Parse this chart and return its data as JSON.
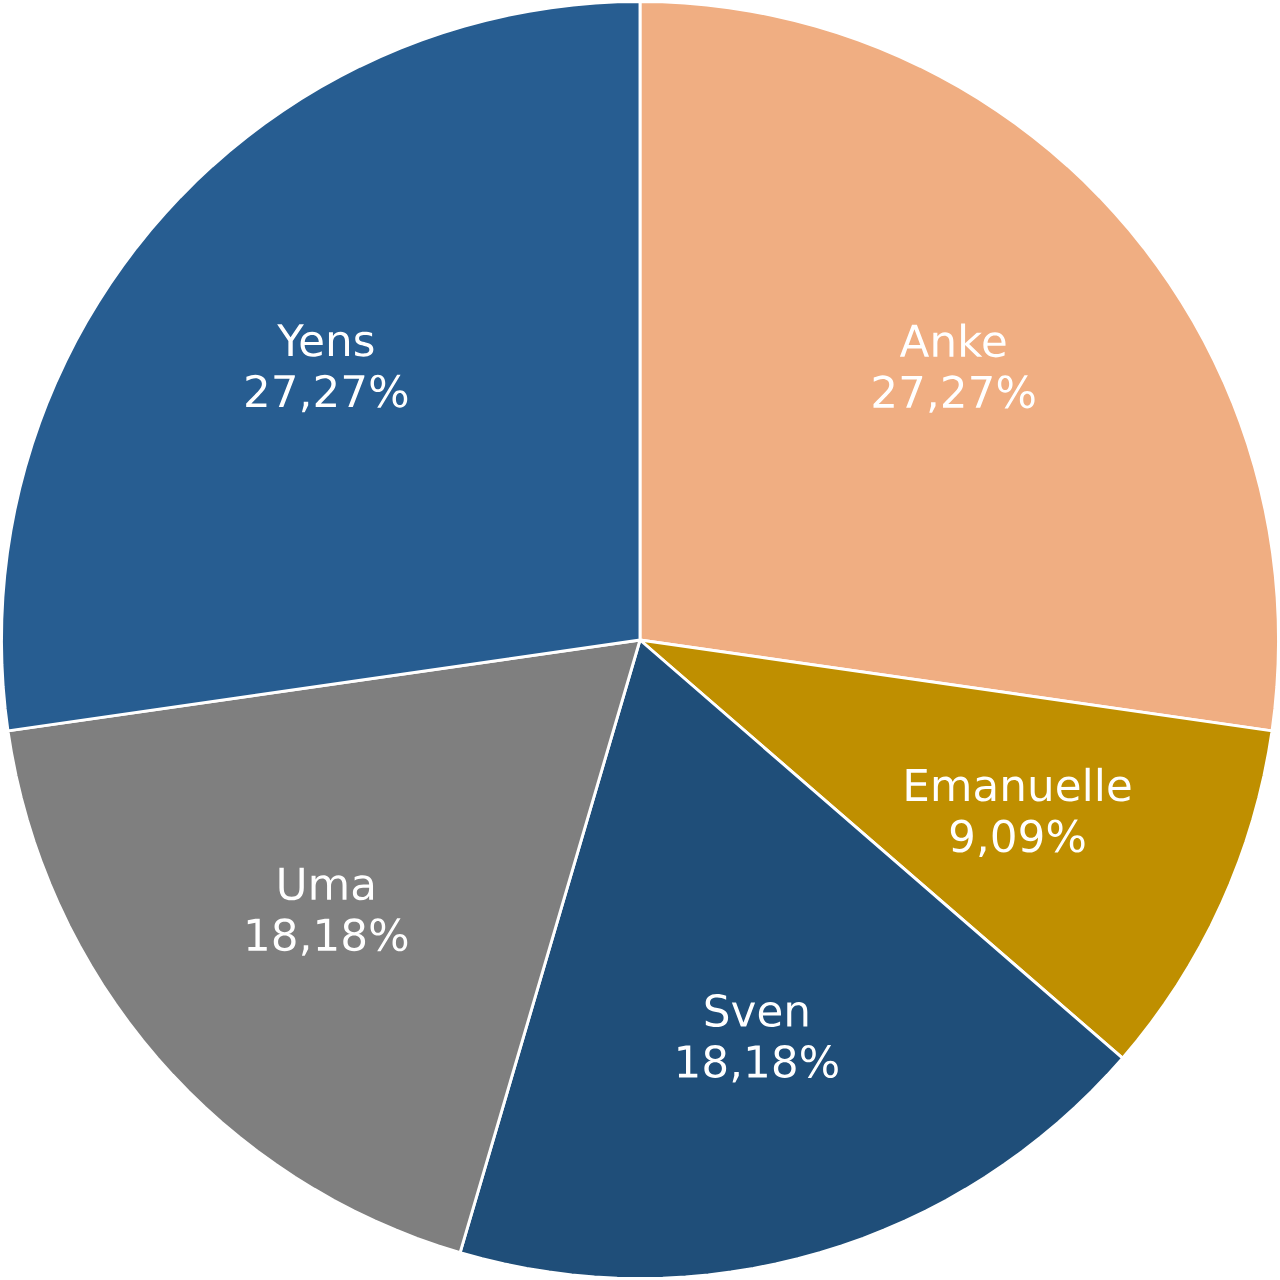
{
  "chart_data": {
    "type": "pie",
    "categories": [
      "Anke",
      "Emanuelle",
      "Sven",
      "Uma",
      "Yens"
    ],
    "values": [
      27.27,
      9.09,
      18.18,
      18.18,
      27.27
    ],
    "value_labels": [
      "27,27%",
      "9,09%",
      "18,18%",
      "18,18%",
      "27,27%"
    ],
    "colors": [
      "#f0ae82",
      "#bf8f00",
      "#1f4e79",
      "#7f7f7f",
      "#275d91"
    ]
  }
}
